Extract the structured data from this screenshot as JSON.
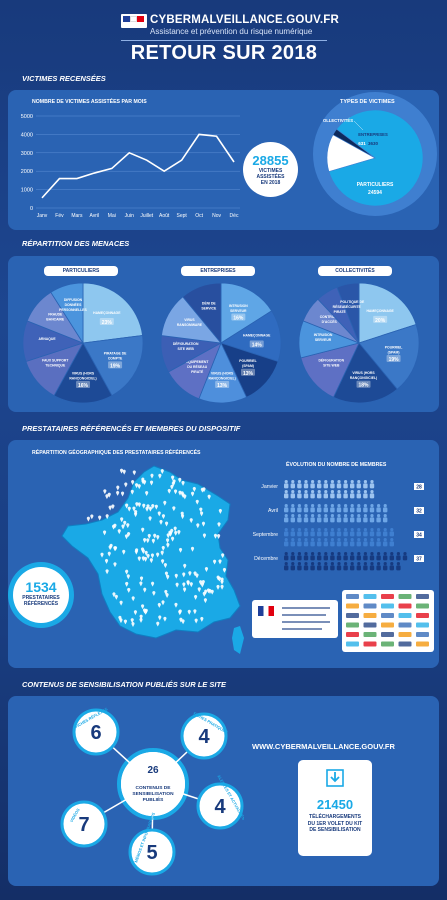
{
  "header": {
    "site": "CYBERMALVEILLANCE.GOUV.FR",
    "tagline": "Assistance et prévention du risque numérique",
    "title": "RETOUR SUR 2018"
  },
  "sections": {
    "victims": "VICTIMES RECENSÉES",
    "threats": "RÉPARTITION DES MENACES",
    "providers": "PRESTATAIRES RÉFÉRENCÉS ET MEMBRES DU DISPOSITIF",
    "content": "CONTENUS DE SENSIBILISATION PUBLIÉS SUR LE SITE"
  },
  "victims": {
    "total": "28855",
    "total_label_1": "VICTIMES",
    "total_label_2": "ASSISTÉES",
    "total_label_3": "EN 2018",
    "types_title": "TYPES DE VICTIMES"
  },
  "threat_pies": {
    "particuliers": "PARTICULIERS",
    "entreprises": "ENTREPRISES",
    "collectivites": "COLLECTIVITÉS"
  },
  "providers": {
    "map_title": "RÉPARTITION GÉOGRAPHIQUE DES PRESTATAIRES RÉFÉRENCÉS",
    "count": "1534",
    "count_label_1": "PRESTATAIRES",
    "count_label_2": "RÉFÉRENCÉS",
    "members_title": "ÉVOLUTION DU NOMBRE DE MEMBRES"
  },
  "content": {
    "total": "26",
    "total_label": "CONTENUS DE SENSIBILISATION PUBLIÉS",
    "url": "WWW.CYBERMALVEILLANCE.GOUV.FR",
    "downloads": "21450",
    "downloads_label_1": "TÉLÉCHARGEMENTS",
    "downloads_label_2": "DU 1ER VOLET DU KIT",
    "downloads_label_3": "DE SENSIBILISATION",
    "items": [
      {
        "label": "FICHES RÉFLEXES",
        "value": "6"
      },
      {
        "label": "FICHES PRATIQUES",
        "value": "4"
      },
      {
        "label": "VIDÉOS",
        "value": "7"
      },
      {
        "label": "ALERTES ET ACTUALITÉS",
        "value": "4"
      },
      {
        "label": "MÉMOS ET INFOGRAPHIES",
        "value": "5"
      }
    ]
  },
  "chart_data": [
    {
      "type": "line",
      "title": "NOMBRE DE VICTIMES ASSISTÉES PAR MOIS",
      "categories": [
        "Janv",
        "Fév",
        "Mars",
        "Avril",
        "Mai",
        "Juin",
        "Juillet",
        "Août",
        "Sept",
        "Oct",
        "Nov",
        "Déc"
      ],
      "values": [
        550,
        1600,
        1600,
        1900,
        2150,
        3000,
        2600,
        2000,
        2600,
        4000,
        3900,
        2500
      ],
      "ylim": [
        0,
        5000
      ],
      "yticks": [
        0,
        1000,
        2000,
        3000,
        4000,
        5000
      ],
      "color": "#ffffff"
    },
    {
      "type": "pie",
      "title": "TYPES DE VICTIMES",
      "labels": [
        "PARTICULIERS",
        "ENTREPRISES",
        "COLLECTIVITÉS"
      ],
      "values": [
        24594,
        3630,
        631
      ],
      "value_labels": [
        "24594",
        "3630",
        "631"
      ],
      "colors": [
        "#1aa9e6",
        "#ffffff",
        "#0d2a5c"
      ]
    },
    {
      "type": "pie",
      "title": "PARTICULIERS",
      "labels": [
        "HAMEÇONNAGE",
        "PIRATAGE DE COMPTE",
        "VIRUS (HORS RANÇONGICIEL)",
        "FAUX SUPPORT TECHNIQUE",
        "ARNAQUE",
        "FRAUDE BANCAIRE",
        "DIFFUSION DONNÉES PERSONNELLES"
      ],
      "values": [
        23,
        19,
        16,
        12,
        11,
        10,
        9
      ],
      "value_labels": [
        "23%",
        "19%",
        "16%",
        "",
        "",
        "",
        ""
      ],
      "colors": [
        "#8ec7ef",
        "#3b78c7",
        "#1d4a96",
        "#5a6fc0",
        "#3f62b8",
        "#6c87cf",
        "#4b94dd"
      ]
    },
    {
      "type": "pie",
      "title": "ENTREPRISES",
      "labels": [
        "INTRUSION SERVEUR",
        "HAMEÇONNAGE",
        "POURRIEL (SPAM)",
        "VIRUS (HORS RANÇONGICIEL)",
        "ÉQUIPEMENT DU RÉSEAU PIRATÉ",
        "DÉFIGURATION SITE WEB",
        "VIRUS RANSOMWARE",
        "DÉNI DE SERVICE"
      ],
      "values": [
        16,
        14,
        13,
        13,
        11,
        10,
        12,
        11
      ],
      "value_labels": [
        "16%",
        "14%",
        "13%",
        "13%",
        "",
        "",
        "",
        ""
      ],
      "colors": [
        "#5fa6e6",
        "#2f6bc0",
        "#173f88",
        "#4e8fdc",
        "#5e70c4",
        "#3c5fb5",
        "#7aa6e4",
        "#284f9f"
      ]
    },
    {
      "type": "pie",
      "title": "COLLECTIVITÉS",
      "labels": [
        "HAMEÇONNAGE",
        "POURRIEL (SPAM)",
        "VIRUS (HORS RANÇONGICIEL)",
        "DÉFIGURATION SITE WEB",
        "INTRUSION SERVEUR",
        "CONTRÔLE D'ACCÈS",
        "RÉSEAU PIRATÉ",
        "POLITIQUE DE SÉCURITÉ"
      ],
      "values": [
        20,
        19,
        18,
        14,
        10,
        7,
        6,
        6
      ],
      "value_labels": [
        "20%",
        "19%",
        "18%",
        "",
        "",
        "",
        "",
        ""
      ],
      "colors": [
        "#8ec7ef",
        "#3b78c7",
        "#1d4a96",
        "#5e70c4",
        "#4b94dd",
        "#6c87cf",
        "#3f62b8",
        "#2a56a8"
      ]
    },
    {
      "type": "bar",
      "title": "ÉVOLUTION DU NOMBRE DE MEMBRES",
      "categories": [
        "Janvier",
        "Avril",
        "Septembre",
        "Décembre"
      ],
      "values": [
        28,
        32,
        34,
        37
      ]
    }
  ]
}
